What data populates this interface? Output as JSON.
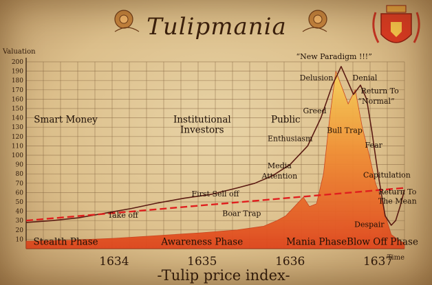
{
  "chart_data": {
    "type": "line",
    "title": "Tulipmania",
    "subtitle": "-Tulip price index-",
    "ylabel": "Valuation",
    "xlabel": "Time",
    "ylim": [
      0,
      200
    ],
    "yticks": [
      10,
      20,
      30,
      40,
      50,
      60,
      70,
      80,
      90,
      100,
      110,
      120,
      130,
      140,
      150,
      160,
      170,
      180,
      190,
      200
    ],
    "xlim": [
      1633.0,
      1637.3
    ],
    "xticks": [
      "1634",
      "1635",
      "1636",
      "1637"
    ],
    "xtick_values": [
      1634,
      1635,
      1636,
      1637
    ],
    "grid": true,
    "series": [
      {
        "kind": "line",
        "color": "#5a1a12",
        "x": [
          1633.0,
          1633.3,
          1633.6,
          1633.9,
          1634.2,
          1634.5,
          1634.8,
          1635.1,
          1635.4,
          1635.6,
          1635.8,
          1636.0,
          1636.2,
          1636.35,
          1636.48,
          1636.58,
          1636.65,
          1636.72,
          1636.8,
          1636.87,
          1636.93,
          1637.0,
          1637.08,
          1637.15,
          1637.2,
          1637.25,
          1637.3
        ],
        "y": [
          28,
          30,
          33,
          38,
          43,
          49,
          54,
          58,
          65,
          70,
          78,
          90,
          110,
          140,
          175,
          195,
          180,
          165,
          175,
          160,
          125,
          80,
          35,
          25,
          30,
          45,
          63
        ]
      },
      {
        "kind": "area",
        "color": "#e8652e",
        "x": [
          1633.0,
          1633.5,
          1634.0,
          1634.5,
          1635.0,
          1635.4,
          1635.7,
          1635.85,
          1635.95,
          1636.05,
          1636.15,
          1636.22,
          1636.3,
          1636.38,
          1636.45,
          1636.52,
          1636.6,
          1636.66,
          1636.74,
          1636.82,
          1636.9,
          1636.97,
          1637.03,
          1637.1,
          1637.15,
          1637.25,
          1637.3
        ],
        "y": [
          8,
          9,
          11,
          14,
          17,
          20,
          24,
          30,
          35,
          45,
          55,
          45,
          48,
          80,
          140,
          190,
          170,
          155,
          170,
          130,
          100,
          70,
          55,
          30,
          15,
          8,
          6
        ]
      },
      {
        "kind": "trend",
        "color": "#e01e1e",
        "x": [
          1633.0,
          1637.3
        ],
        "y": [
          30,
          65
        ]
      }
    ],
    "annotations": [
      {
        "text": "Smart Money",
        "x": 1633.45,
        "y": 135
      },
      {
        "text": "Institutional",
        "x": 1635.0,
        "y": 135
      },
      {
        "text": "Investors",
        "x": 1635.0,
        "y": 124
      },
      {
        "text": "Public",
        "x": 1635.95,
        "y": 135
      },
      {
        "text": "“New Paradigm !!!”",
        "x": 1636.5,
        "y": 203
      },
      {
        "text": "Delusion",
        "x": 1636.3,
        "y": 180
      },
      {
        "text": "Denial",
        "x": 1636.85,
        "y": 180
      },
      {
        "text": "Return To",
        "x": 1637.02,
        "y": 166
      },
      {
        "text": "“Normal”",
        "x": 1636.98,
        "y": 155
      },
      {
        "text": "Greed",
        "x": 1636.28,
        "y": 145
      },
      {
        "text": "Bull Trap",
        "x": 1636.62,
        "y": 124
      },
      {
        "text": "Enthusiasm",
        "x": 1636.0,
        "y": 115
      },
      {
        "text": "Fear",
        "x": 1636.95,
        "y": 108
      },
      {
        "text": "Media",
        "x": 1635.88,
        "y": 86
      },
      {
        "text": "Attention",
        "x": 1635.88,
        "y": 75
      },
      {
        "text": "Capitulation",
        "x": 1637.1,
        "y": 76
      },
      {
        "text": "First Sell off",
        "x": 1635.15,
        "y": 56
      },
      {
        "text": "Return To",
        "x": 1637.22,
        "y": 58
      },
      {
        "text": "The Mean",
        "x": 1637.22,
        "y": 48
      },
      {
        "text": "Take off",
        "x": 1634.1,
        "y": 33
      },
      {
        "text": "Boar Trap",
        "x": 1635.45,
        "y": 35
      },
      {
        "text": "Despair",
        "x": 1636.9,
        "y": 23
      },
      {
        "text": "Stealth Phase",
        "x": 1633.45,
        "y": 4
      },
      {
        "text": "Awareness Phase",
        "x": 1635.0,
        "y": 4
      },
      {
        "text": "Mania Phase",
        "x": 1636.3,
        "y": 4
      },
      {
        "text": "Blow Off Phase",
        "x": 1637.05,
        "y": 4
      }
    ]
  }
}
